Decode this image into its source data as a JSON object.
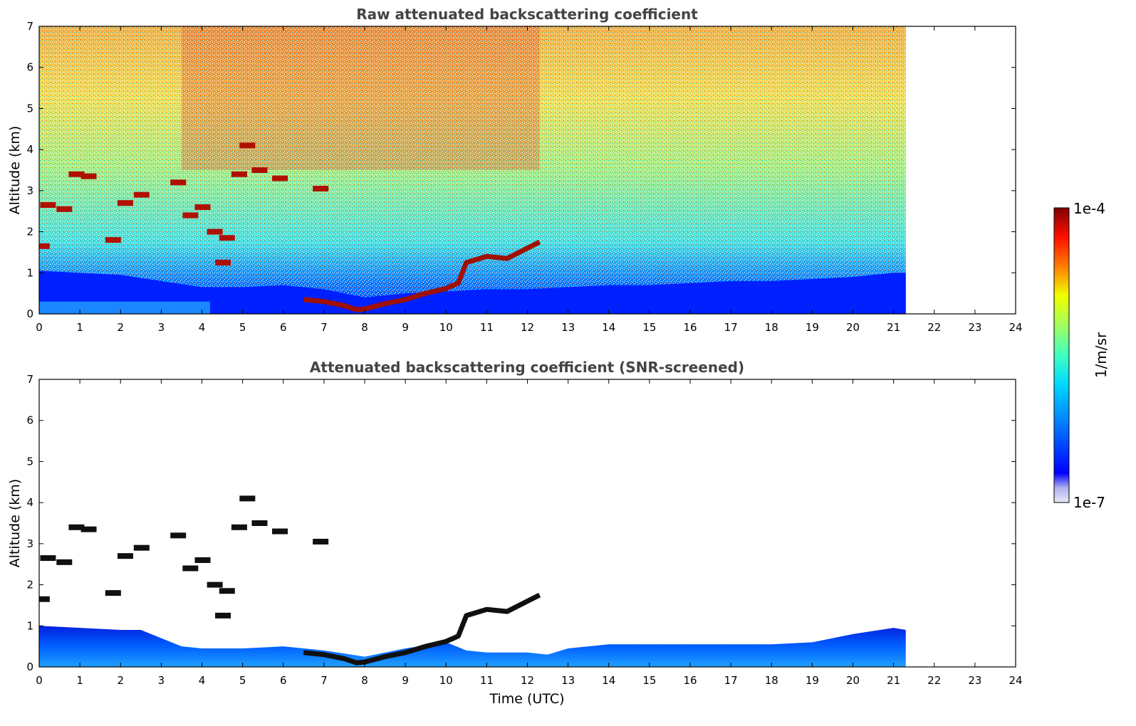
{
  "chart_data": [
    {
      "type": "heatmap",
      "title": "Raw attenuated backscattering coefficient",
      "ylabel": "Altitude (km)",
      "xlabel": "",
      "xlim": [
        0,
        24
      ],
      "ylim": [
        0,
        7
      ],
      "xticks": [
        "0",
        "1",
        "2",
        "3",
        "4",
        "5",
        "6",
        "7",
        "8",
        "9",
        "10",
        "11",
        "12",
        "13",
        "14",
        "15",
        "16",
        "17",
        "18",
        "19",
        "20",
        "21",
        "22",
        "23",
        "24"
      ],
      "yticks": [
        "0",
        "1",
        "2",
        "3",
        "4",
        "5",
        "6",
        "7"
      ],
      "data_end_time": 21.3,
      "boundary_layer_top": [
        [
          0,
          1.05
        ],
        [
          2,
          0.95
        ],
        [
          3,
          0.8
        ],
        [
          4,
          0.65
        ],
        [
          5,
          0.65
        ],
        [
          6,
          0.7
        ],
        [
          7,
          0.6
        ],
        [
          8,
          0.4
        ],
        [
          9,
          0.5
        ],
        [
          10,
          0.55
        ],
        [
          11,
          0.6
        ],
        [
          12,
          0.6
        ],
        [
          13,
          0.65
        ],
        [
          14,
          0.7
        ],
        [
          15,
          0.7
        ],
        [
          16,
          0.75
        ],
        [
          17,
          0.8
        ],
        [
          18,
          0.8
        ],
        [
          19,
          0.85
        ],
        [
          20,
          0.9
        ],
        [
          21,
          1.0
        ],
        [
          21.3,
          1.0
        ]
      ],
      "cloud_layer": [
        [
          6.5,
          0.35
        ],
        [
          7,
          0.3
        ],
        [
          7.5,
          0.2
        ],
        [
          7.8,
          0.1
        ],
        [
          8,
          0.12
        ],
        [
          8.5,
          0.25
        ],
        [
          9,
          0.35
        ],
        [
          9.5,
          0.5
        ],
        [
          10,
          0.62
        ],
        [
          10.3,
          0.75
        ],
        [
          10.5,
          1.25
        ],
        [
          11,
          1.4
        ],
        [
          11.5,
          1.35
        ],
        [
          12,
          1.6
        ],
        [
          12.3,
          1.75
        ]
      ],
      "cloud_patches": [
        [
          0.2,
          2.65
        ],
        [
          0.6,
          2.55
        ],
        [
          0.9,
          3.4
        ],
        [
          1.2,
          3.35
        ],
        [
          1.8,
          1.8
        ],
        [
          2.1,
          2.7
        ],
        [
          2.5,
          2.9
        ],
        [
          3.4,
          3.2
        ],
        [
          3.7,
          2.4
        ],
        [
          4.0,
          2.6
        ],
        [
          4.3,
          2.0
        ],
        [
          4.6,
          1.85
        ],
        [
          4.5,
          1.25
        ],
        [
          4.9,
          3.4
        ],
        [
          5.1,
          4.1
        ],
        [
          5.4,
          3.5
        ],
        [
          5.9,
          3.3
        ],
        [
          6.9,
          3.05
        ],
        [
          0.05,
          1.65
        ]
      ],
      "colorscale": "jet (1e-7 to 1e-4, log)"
    },
    {
      "type": "heatmap",
      "title": "Attenuated backscattering coefficient (SNR-screened)",
      "ylabel": "Altitude (km)",
      "xlabel": "Time (UTC)",
      "xlim": [
        0,
        24
      ],
      "ylim": [
        0,
        7
      ],
      "xticks": [
        "0",
        "1",
        "2",
        "3",
        "4",
        "5",
        "6",
        "7",
        "8",
        "9",
        "10",
        "11",
        "12",
        "13",
        "14",
        "15",
        "16",
        "17",
        "18",
        "19",
        "20",
        "21",
        "22",
        "23",
        "24"
      ],
      "yticks": [
        "0",
        "1",
        "2",
        "3",
        "4",
        "5",
        "6",
        "7"
      ],
      "data_end_time": 21.3,
      "screened_boundary_top": [
        [
          0,
          1.0
        ],
        [
          1,
          0.95
        ],
        [
          2,
          0.9
        ],
        [
          2.5,
          0.9
        ],
        [
          3,
          0.7
        ],
        [
          3.5,
          0.5
        ],
        [
          4,
          0.45
        ],
        [
          5,
          0.45
        ],
        [
          6,
          0.5
        ],
        [
          7,
          0.4
        ],
        [
          8,
          0.25
        ],
        [
          9,
          0.45
        ],
        [
          10,
          0.6
        ],
        [
          10.5,
          0.4
        ],
        [
          11,
          0.35
        ],
        [
          12,
          0.35
        ],
        [
          12.5,
          0.3
        ],
        [
          13,
          0.45
        ],
        [
          14,
          0.55
        ],
        [
          15,
          0.55
        ],
        [
          16,
          0.55
        ],
        [
          17,
          0.55
        ],
        [
          18,
          0.55
        ],
        [
          19,
          0.6
        ],
        [
          20,
          0.8
        ],
        [
          21,
          0.95
        ],
        [
          21.3,
          0.9
        ]
      ]
    }
  ],
  "colorbar": {
    "max_label": "1e-4",
    "min_label": "1e-7",
    "unit_label": "1/m/sr",
    "colors": [
      "#e8e8f8",
      "#c0c0f0",
      "#a0a0f0",
      "#0000ff",
      "#0040ff",
      "#0090ff",
      "#00d0ff",
      "#40ffc0",
      "#a0ff60",
      "#f0ff00",
      "#ffc000",
      "#ff6000",
      "#ff1000",
      "#c00000",
      "#800000"
    ]
  }
}
